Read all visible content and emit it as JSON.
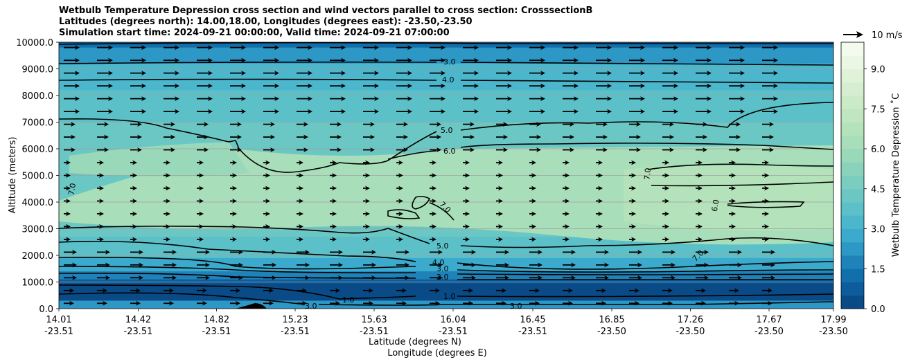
{
  "title": {
    "line1": "Wetbulb Temperature Depression cross section and wind vectors parallel to cross section: CrosssectionB",
    "line2": "Latitudes (degrees north): 14.00,18.00, Longitudes (degrees east): -23.50,-23.50",
    "line3": "Simulation start time: 2024-09-21 00:00:00, Valid time: 2024-09-21 07:00:00"
  },
  "chart_data": {
    "type": "contourf-cross-section",
    "ylabel": "Altitude (meters)",
    "xlabel_lat": "Latitude (degrees N)",
    "xlabel_lon": "Longitude (degrees E)",
    "ylim": [
      0,
      10000
    ],
    "y_ticks": [
      "0.0",
      "1000.0",
      "2000.0",
      "3000.0",
      "4000.0",
      "5000.0",
      "6000.0",
      "7000.0",
      "8000.0",
      "9000.0",
      "10000.0"
    ],
    "x_ticks": [
      {
        "lat": "14.01",
        "lon": "-23.51"
      },
      {
        "lat": "14.42",
        "lon": "-23.51"
      },
      {
        "lat": "14.82",
        "lon": "-23.51"
      },
      {
        "lat": "15.23",
        "lon": "-23.51"
      },
      {
        "lat": "15.63",
        "lon": "-23.51"
      },
      {
        "lat": "16.04",
        "lon": "-23.51"
      },
      {
        "lat": "16.45",
        "lon": "-23.51"
      },
      {
        "lat": "16.85",
        "lon": "-23.50"
      },
      {
        "lat": "17.26",
        "lon": "-23.50"
      },
      {
        "lat": "17.67",
        "lon": "-23.50"
      },
      {
        "lat": "17.99",
        "lon": "-23.50"
      }
    ],
    "colorbar": {
      "label": "Wetbulb Temperature Depression ˚C",
      "ticks": [
        "0.0",
        "1.5",
        "3.0",
        "4.5",
        "6.0",
        "7.5",
        "9.0"
      ],
      "range": [
        0,
        10
      ],
      "colors": [
        "#0a4b87",
        "#0d5d9c",
        "#1170ac",
        "#1f83ba",
        "#2d97c5",
        "#3caacd",
        "#4bb6cc",
        "#5bc0c8",
        "#6bc7c3",
        "#7bcdbf",
        "#8ad2bb",
        "#99d8b9",
        "#a8deb9",
        "#b4e2ba",
        "#bfe6be",
        "#cbeac6",
        "#d6eecf",
        "#e0f3d9",
        "#eaf7e3",
        "#f3fbee"
      ]
    },
    "wind_key": "10 m/s",
    "contour_labels": [
      "2.0",
      "3.0",
      "4.0",
      "5.0",
      "6.0",
      "7.0",
      "6.0",
      "5.0",
      "4.0",
      "3.0",
      "2.0",
      "1.0"
    ]
  }
}
